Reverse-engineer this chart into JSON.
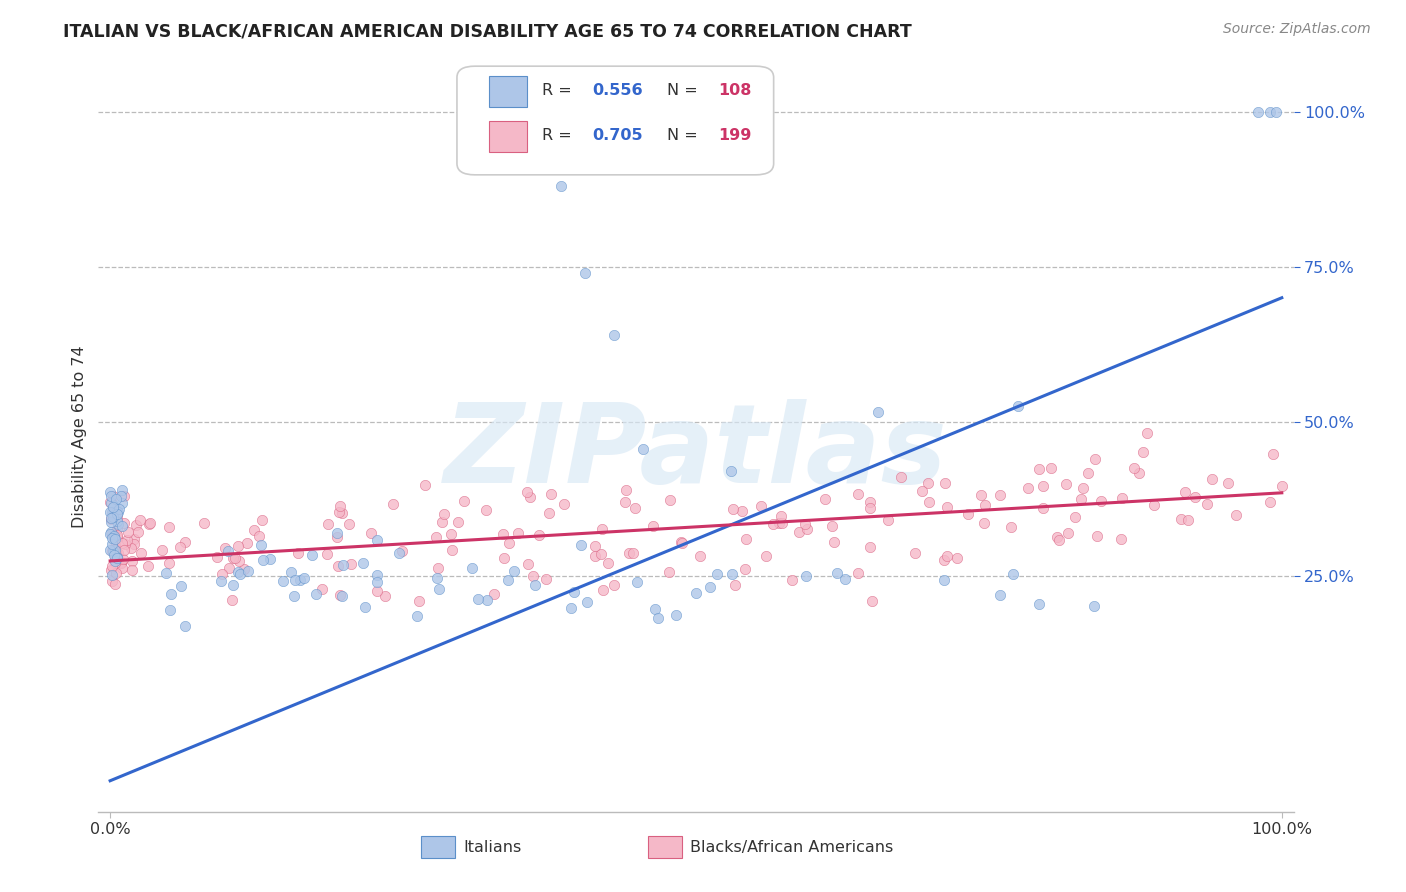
{
  "title": "ITALIAN VS BLACK/AFRICAN AMERICAN DISABILITY AGE 65 TO 74 CORRELATION CHART",
  "source": "Source: ZipAtlas.com",
  "ylabel": "Disability Age 65 to 74",
  "watermark": "ZIPatlas",
  "italian_scatter_color": "#aec6e8",
  "italian_edge_color": "#5b8fc9",
  "black_scatter_color": "#f5b8c8",
  "black_edge_color": "#d96080",
  "italian_line_color": "#3366cc",
  "black_line_color": "#cc3366",
  "title_color": "#222222",
  "source_color": "#888888",
  "grid_color": "#bbbbbb",
  "background_color": "#ffffff",
  "legend_r_color": "#3366cc",
  "legend_n_color": "#cc3366",
  "seed": 7,
  "italian_N": 108,
  "black_N": 199,
  "italian_line_x": [
    0.0,
    1.0
  ],
  "italian_line_y": [
    -0.08,
    0.7
  ],
  "black_line_x": [
    0.0,
    1.0
  ],
  "black_line_y": [
    0.275,
    0.385
  ],
  "ymin": -0.13,
  "ymax": 1.08,
  "yticks": [
    0.25,
    0.5,
    0.75,
    1.0
  ],
  "ytick_labels": [
    "25.0%",
    "50.0%",
    "75.0%",
    "100.0%"
  ],
  "xticks": [
    0.0,
    1.0
  ],
  "xtick_labels": [
    "0.0%",
    "100.0%"
  ]
}
